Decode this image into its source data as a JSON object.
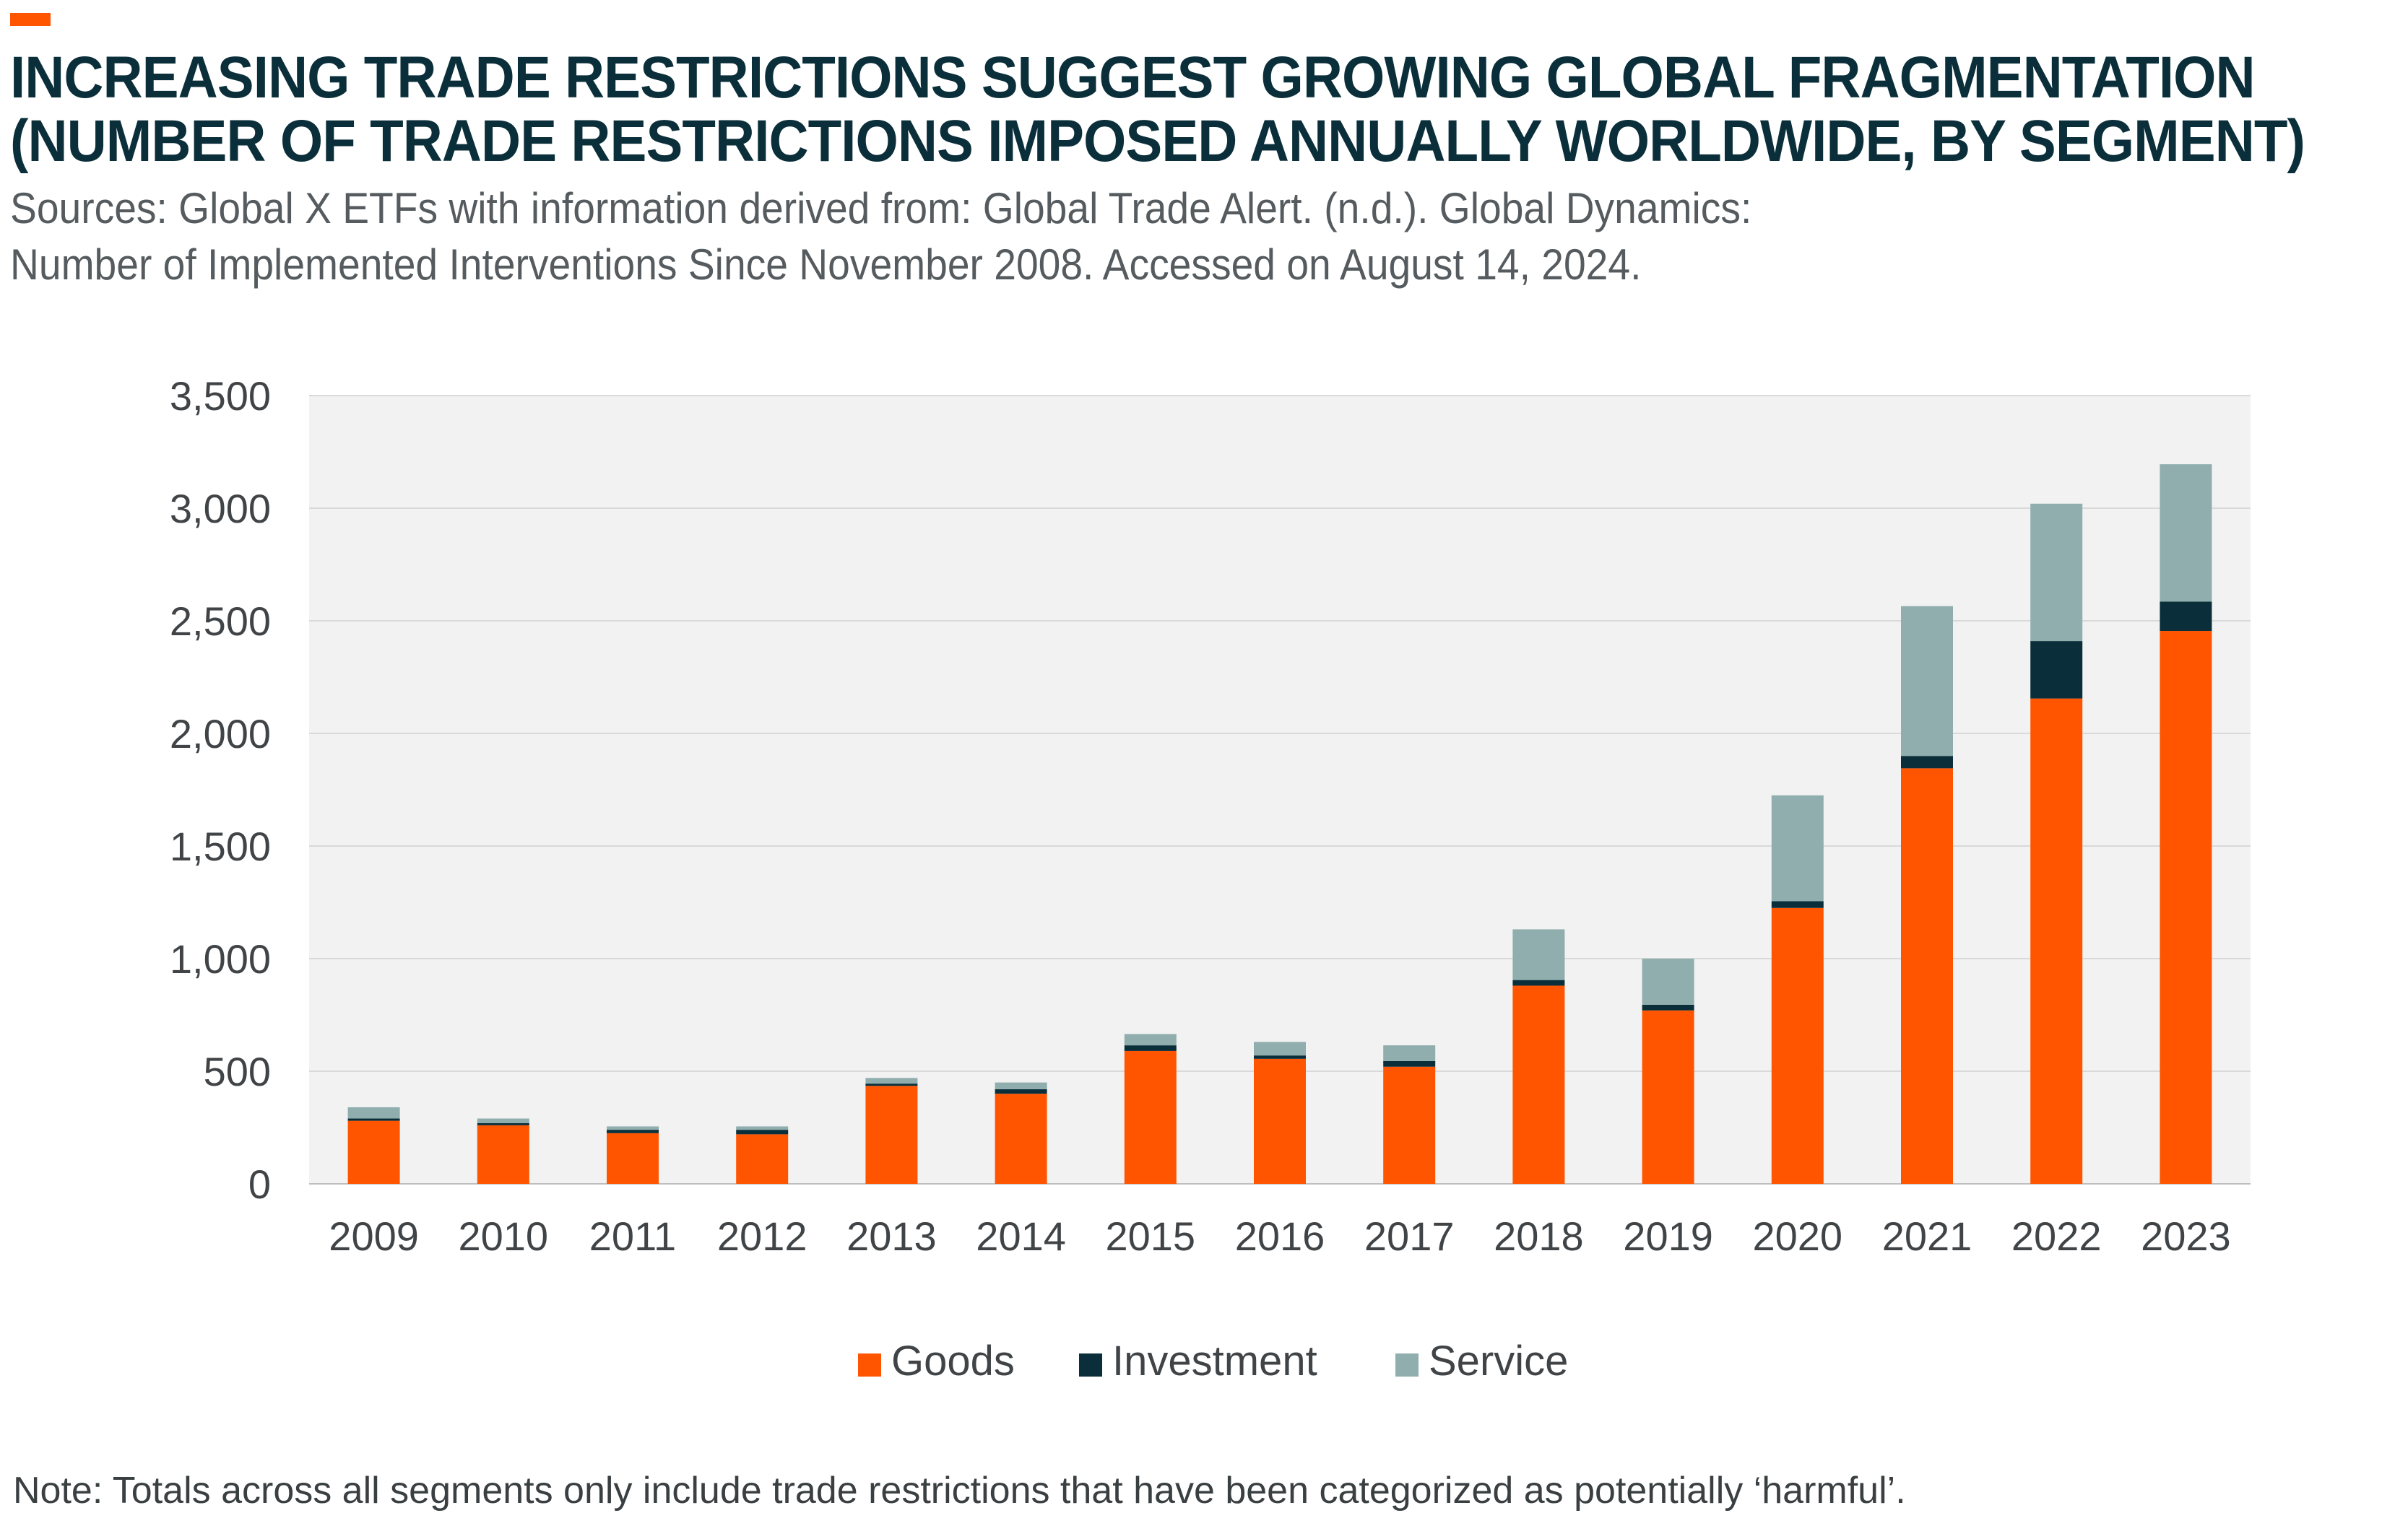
{
  "header": {
    "title_line1": "INCREASING TRADE RESTRICTIONS SUGGEST GROWING GLOBAL FRAGMENTATION",
    "title_line2": "(NUMBER OF TRADE RESTRICTIONS IMPOSED ANNUALLY WORLDWIDE, BY SEGMENT)",
    "sources_line1": "Sources: Global X ETFs with information derived from: Global Trade Alert. (n.d.). Global Dynamics:",
    "sources_line2": "Number of Implemented Interventions Since November 2008. Accessed on August 14, 2024."
  },
  "colors": {
    "accent": "#FF5500",
    "title": "#0B2F3A",
    "goods": "#FF5500",
    "investment": "#0B2F3A",
    "service": "#8FAEAD",
    "plot_bg": "#F2F2F2"
  },
  "chart_data": {
    "type": "bar",
    "stacked": true,
    "categories": [
      "2009",
      "2010",
      "2011",
      "2012",
      "2013",
      "2014",
      "2015",
      "2016",
      "2017",
      "2018",
      "2019",
      "2020",
      "2021",
      "2022",
      "2023"
    ],
    "series": [
      {
        "name": "Goods",
        "color": "#FF5500",
        "values": [
          280,
          260,
          225,
          220,
          435,
          400,
          590,
          555,
          520,
          880,
          770,
          1225,
          1845,
          2155,
          2455
        ]
      },
      {
        "name": "Investment",
        "color": "#0B2F3A",
        "values": [
          10,
          10,
          15,
          20,
          10,
          20,
          25,
          15,
          25,
          25,
          25,
          30,
          55,
          255,
          130
        ]
      },
      {
        "name": "Service",
        "color": "#8FAEAD",
        "values": [
          50,
          20,
          15,
          15,
          25,
          30,
          50,
          60,
          70,
          225,
          205,
          470,
          665,
          610,
          610
        ]
      }
    ],
    "y_ticks": [
      "0",
      "500",
      "1,000",
      "1,500",
      "2,000",
      "2,500",
      "3,000",
      "3,500"
    ],
    "ylim": [
      0,
      3500
    ],
    "xlabel": "",
    "ylabel": "",
    "grid": true,
    "legend_position": "bottom-center"
  },
  "footer": {
    "note": "Note: Totals across all segments only include trade restrictions that have been categorized as potentially ‘harmful’."
  }
}
